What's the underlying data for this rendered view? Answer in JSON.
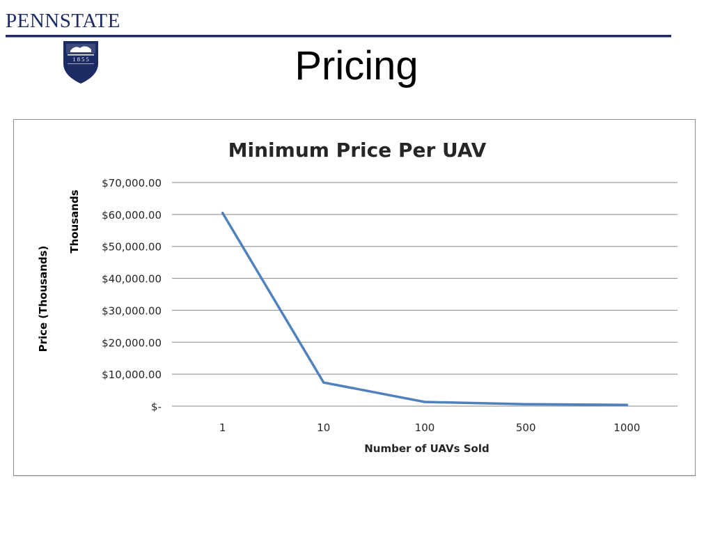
{
  "header": {
    "logo_text": "PENNSTATE",
    "seal_year": "1 8 5 5",
    "slide_title": "Pricing"
  },
  "colors": {
    "brand_navy": "#1c2b63",
    "series_line": "#4f81bd",
    "gridline": "#868686"
  },
  "icons": [
    "penn-state-shield-icon"
  ],
  "chart_data": {
    "type": "line",
    "title": "Minimum Price Per UAV",
    "xlabel": "Number of UAVs Sold",
    "ylabel": "Price (Thousands)",
    "display_units_label": "Thousands",
    "categories": [
      "1",
      "10",
      "100",
      "500",
      "1000"
    ],
    "series": [
      {
        "values": [
          60500,
          7400,
          1300,
          600,
          400
        ]
      }
    ],
    "yticks": [
      {
        "value": 0,
        "label": "$-"
      },
      {
        "value": 10000,
        "label": "$10,000.00"
      },
      {
        "value": 20000,
        "label": "$20,000.00"
      },
      {
        "value": 30000,
        "label": "$30,000.00"
      },
      {
        "value": 40000,
        "label": "$40,000.00"
      },
      {
        "value": 50000,
        "label": "$50,000.00"
      },
      {
        "value": 60000,
        "label": "$60,000.00"
      },
      {
        "value": 70000,
        "label": "$70,000.00"
      }
    ],
    "ylim": [
      0,
      70000
    ],
    "grid": true,
    "legend": "none"
  }
}
